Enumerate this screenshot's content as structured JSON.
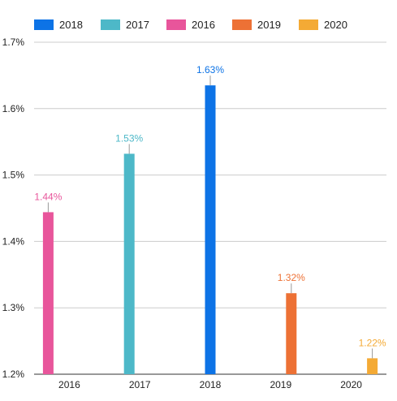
{
  "chart_data": {
    "type": "bar",
    "title": "",
    "xlabel": "",
    "ylabel": "",
    "categories": [
      "2016",
      "2017",
      "2018",
      "2019",
      "2020"
    ],
    "ylim": [
      1.2,
      1.7
    ],
    "yticks": [
      "1.2%",
      "1.3%",
      "1.4%",
      "1.5%",
      "1.6%",
      "1.7%"
    ],
    "ytick_values": [
      1.2,
      1.3,
      1.4,
      1.5,
      1.6,
      1.7
    ],
    "grid": true,
    "legend_position": "top-left",
    "series": [
      {
        "name": "2018",
        "color": "#0d73e6",
        "values": [
          null,
          null,
          1.635,
          null,
          null
        ],
        "label": "1.63%"
      },
      {
        "name": "2017",
        "color": "#4db8c8",
        "values": [
          null,
          1.532,
          null,
          null,
          null
        ],
        "label": "1.53%"
      },
      {
        "name": "2016",
        "color": "#e8559b",
        "values": [
          1.444,
          null,
          null,
          null,
          null
        ],
        "label": "1.44%"
      },
      {
        "name": "2019",
        "color": "#ed7135",
        "values": [
          null,
          null,
          null,
          1.322,
          null
        ],
        "label": "1.32%"
      },
      {
        "name": "2020",
        "color": "#f4aa35",
        "values": [
          null,
          null,
          null,
          null,
          1.224
        ],
        "label": "1.22%"
      }
    ]
  }
}
